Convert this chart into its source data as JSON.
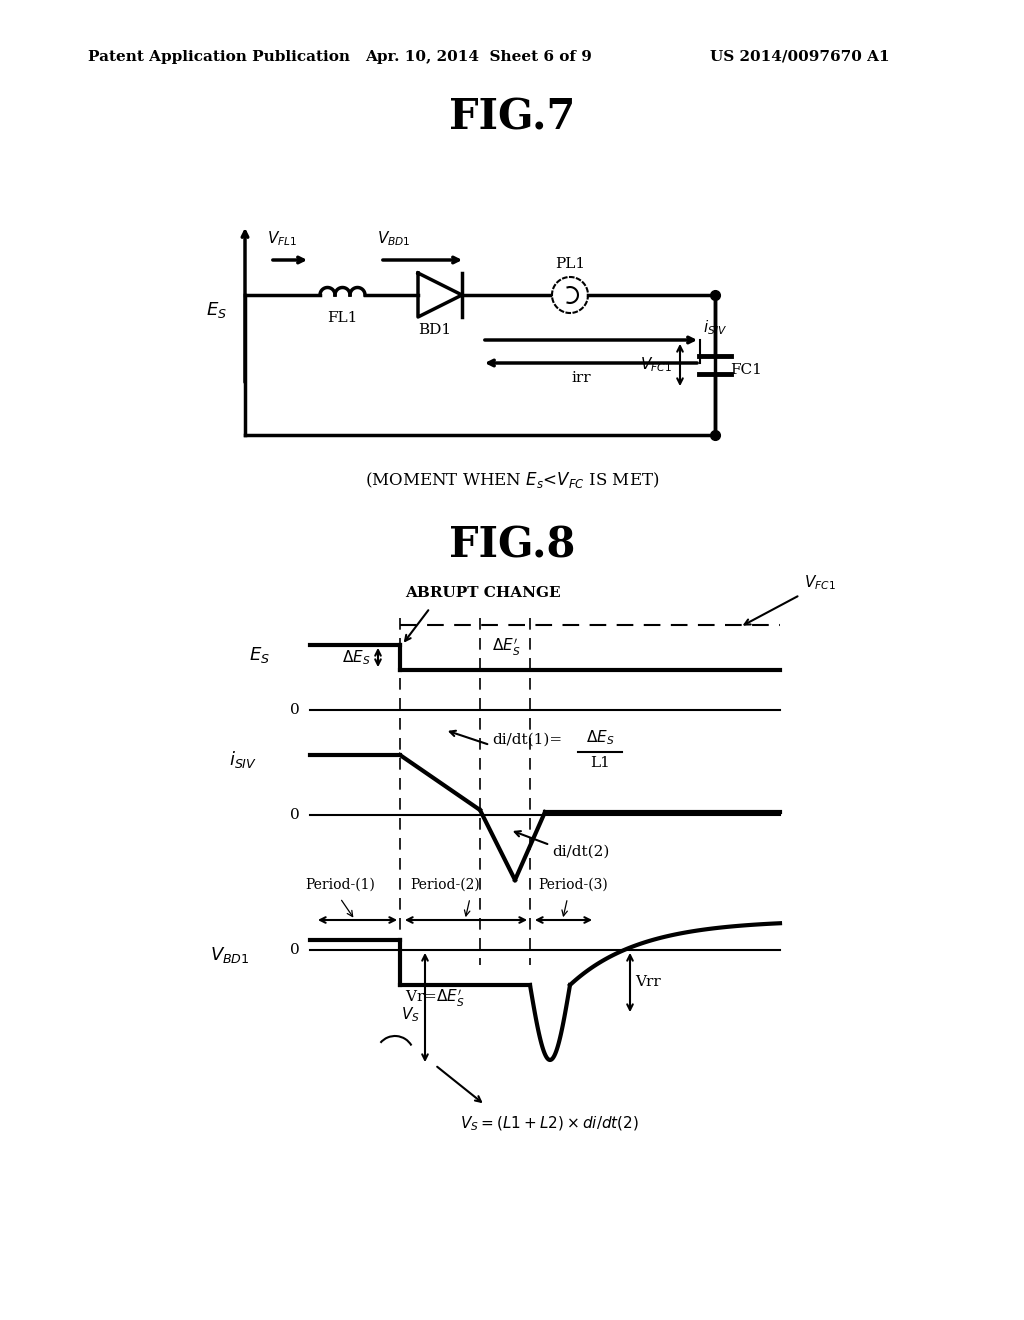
{
  "title_header": "Patent Application Publication",
  "date_header": "Apr. 10, 2014  Sheet 6 of 9",
  "patent_header": "US 2014/0097670 A1",
  "fig7_title": "FIG.7",
  "fig8_title": "FIG.8",
  "background_color": "#ffffff",
  "line_color": "#000000",
  "header_fontsize": 11,
  "fig_title_fontsize": 30,
  "label_fontsize": 13,
  "annot_fontsize": 11,
  "small_fontsize": 10,
  "lw_main": 2.5,
  "lw_thin": 1.5,
  "lw_dashed": 1.2
}
